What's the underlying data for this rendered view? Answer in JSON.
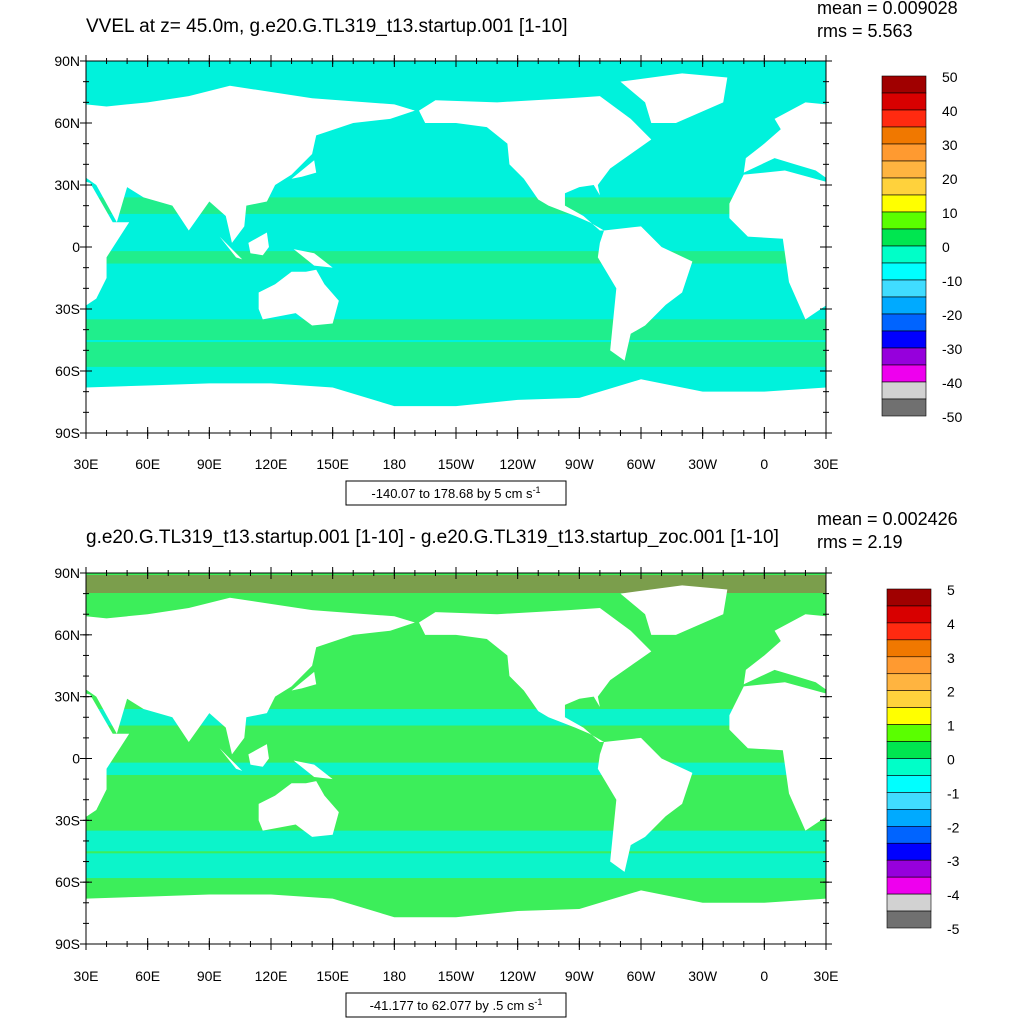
{
  "panels": [
    {
      "title": "VVEL at z=  45.0m, g.e20.G.TL319_t13.startup.001 [1-10]",
      "stats": [
        "mean = 0.009028",
        "rms = 5.563"
      ],
      "lat_labels": [
        "90N",
        "60N",
        "30N",
        "0",
        "30S",
        "60S",
        "90S"
      ],
      "lon_labels": [
        "30E",
        "60E",
        "90E",
        "120E",
        "150E",
        "180",
        "150W",
        "120W",
        "90W",
        "60W",
        "30W",
        "0",
        "30E"
      ],
      "info": "-140.07 to 178.68 by 5 cm s",
      "info_exponent": "-1",
      "colorbar": {
        "levels": [
          50,
          40,
          30,
          20,
          10,
          0,
          -10,
          -20,
          -30,
          -40,
          -50
        ],
        "colors": [
          "#a00000",
          "#d80000",
          "#ff2a10",
          "#f07800",
          "#ff9a30",
          "#ffb440",
          "#ffd23c",
          "#ffff00",
          "#5aff00",
          "#00e650",
          "#00ffc8",
          "#00ffff",
          "#40dcff",
          "#00aaff",
          "#0064ff",
          "#0000ff",
          "#9600dc",
          "#ee00ee",
          "#d2d2d2",
          "#707070"
        ]
      }
    },
    {
      "title": "g.e20.G.TL319_t13.startup.001 [1-10] - g.e20.G.TL319_t13.startup_zoc.001 [1-10]",
      "stats": [
        "mean = 0.002426",
        "rms = 2.19"
      ],
      "lat_labels": [
        "90N",
        "60N",
        "30N",
        "0",
        "30S",
        "60S",
        "90S"
      ],
      "lon_labels": [
        "30E",
        "60E",
        "90E",
        "120E",
        "150E",
        "180",
        "150W",
        "120W",
        "90W",
        "60W",
        "30W",
        "0",
        "30E"
      ],
      "info": "-41.177 to 62.077 by .5 cm s",
      "info_exponent": "-1",
      "colorbar": {
        "levels": [
          5,
          4,
          3,
          2,
          1,
          0,
          -1,
          -2,
          -3,
          -4,
          -5
        ],
        "colors": [
          "#a00000",
          "#d80000",
          "#ff2a10",
          "#f07800",
          "#ff9a30",
          "#ffb440",
          "#ffd23c",
          "#ffff00",
          "#5aff00",
          "#00e650",
          "#00ffc8",
          "#00ffff",
          "#40dcff",
          "#00aaff",
          "#0064ff",
          "#0000ff",
          "#9600dc",
          "#ee00ee",
          "#d2d2d2",
          "#707070"
        ]
      }
    }
  ]
}
